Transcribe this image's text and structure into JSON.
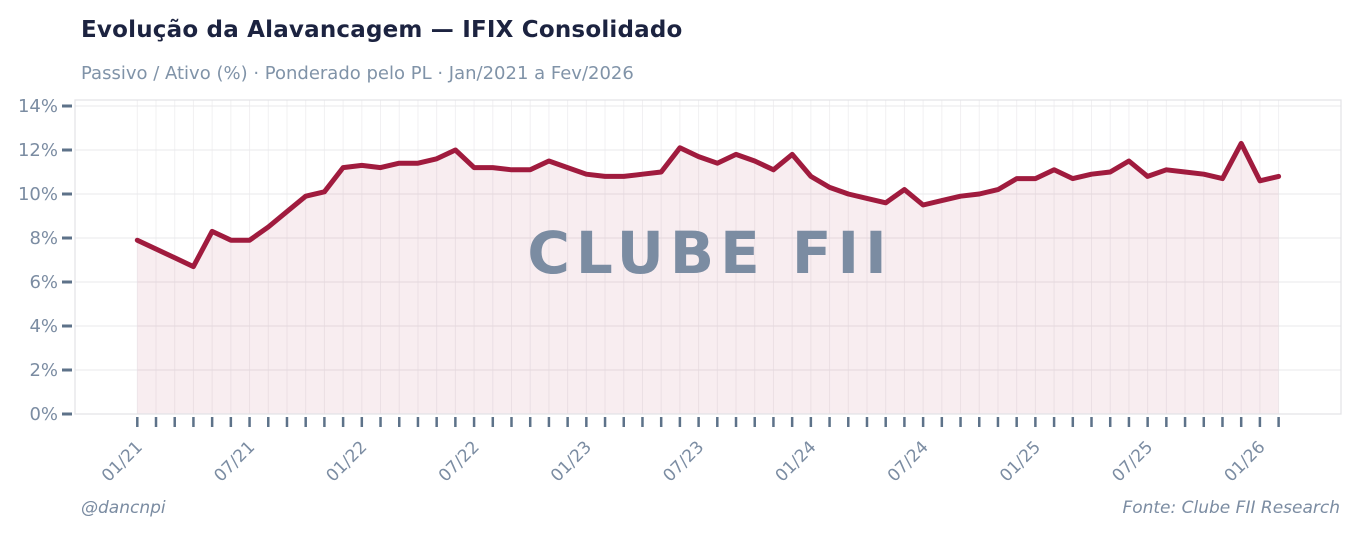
{
  "header": {
    "title": "Evolução da Alavancagem — IFIX Consolidado",
    "subtitle": "Passivo / Ativo (%) · Ponderado pelo PL · Jan/2021 a Fev/2026"
  },
  "footer": {
    "credit": "@dancnpi",
    "source": "Fonte: Clube FII Research"
  },
  "watermark": "CLUBE FII",
  "colors": {
    "line": "#a01b3e",
    "area_fill": "rgba(161,28,62,0.08)",
    "watermark": "rgba(161,28,62,0.09)",
    "grid_h": "#e9e9eb",
    "grid_v": "#f1f0f2",
    "border": "#e2e2e6",
    "tick": "#5d7289",
    "tick_label": "#7b8ca2",
    "title": "#1c2340",
    "subtitle": "#8093a8"
  },
  "chart_data": {
    "type": "line",
    "title": "Evolução da Alavancagem — IFIX Consolidado",
    "series_name": "Passivo / Ativo (%) · Ponderado pelo PL",
    "xlabel": "",
    "ylabel": "Passivo / Ativo (%)",
    "ylim": [
      0,
      14
    ],
    "grid": true,
    "legend_position": "none",
    "y_tick_labels": [
      "0%",
      "2%",
      "4%",
      "6%",
      "8%",
      "10%",
      "12%",
      "14%"
    ],
    "x_major_tick_labels": [
      "01/21",
      "07/21",
      "01/22",
      "07/22",
      "01/23",
      "07/23",
      "01/24",
      "07/24",
      "01/25",
      "07/25",
      "01/26"
    ],
    "x": [
      "01/21",
      "02/21",
      "03/21",
      "04/21",
      "05/21",
      "06/21",
      "07/21",
      "08/21",
      "09/21",
      "10/21",
      "11/21",
      "12/21",
      "01/22",
      "02/22",
      "03/22",
      "04/22",
      "05/22",
      "06/22",
      "07/22",
      "08/22",
      "09/22",
      "10/22",
      "11/22",
      "12/22",
      "01/23",
      "02/23",
      "03/23",
      "04/23",
      "05/23",
      "06/23",
      "07/23",
      "08/23",
      "09/23",
      "10/23",
      "11/23",
      "12/23",
      "01/24",
      "02/24",
      "03/24",
      "04/24",
      "05/24",
      "06/24",
      "07/24",
      "08/24",
      "09/24",
      "10/24",
      "11/24",
      "12/24",
      "01/25",
      "02/25",
      "03/25",
      "04/25",
      "05/25",
      "06/25",
      "07/25",
      "08/25",
      "09/25",
      "10/25",
      "11/25",
      "12/25",
      "01/26",
      "02/26"
    ],
    "values": [
      7.9,
      7.5,
      7.1,
      6.7,
      8.3,
      7.9,
      7.9,
      8.5,
      9.2,
      9.9,
      10.1,
      11.2,
      11.3,
      11.2,
      11.4,
      11.4,
      11.6,
      12.0,
      11.2,
      11.2,
      11.1,
      11.1,
      11.5,
      11.2,
      10.9,
      10.8,
      10.8,
      10.9,
      11.0,
      12.1,
      11.7,
      11.4,
      11.8,
      11.5,
      11.1,
      11.8,
      10.8,
      10.3,
      10.0,
      9.8,
      9.6,
      10.2,
      9.5,
      9.7,
      9.9,
      10.0,
      10.2,
      10.7,
      10.7,
      11.1,
      10.7,
      10.9,
      11.0,
      11.5,
      10.8,
      11.1,
      11.0,
      10.9,
      10.7,
      12.3,
      10.6,
      10.8
    ]
  }
}
